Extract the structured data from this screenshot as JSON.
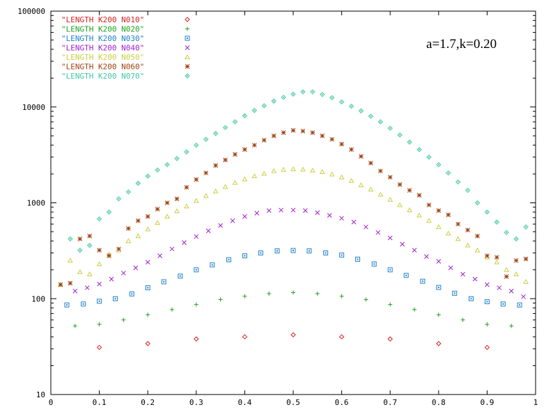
{
  "chart_data": {
    "type": "scatter",
    "title": "",
    "xlabel": "",
    "ylabel": "",
    "xlim": [
      0,
      1
    ],
    "ylim": [
      10,
      100000
    ],
    "yscale": "log",
    "grid": false,
    "legend_position": "top-left",
    "annotation": "a=1.7,k=0.20",
    "x_ticks": [
      "0",
      "0.1",
      "0.2",
      "0.3",
      "0.4",
      "0.5",
      "0.6",
      "0.7",
      "0.8",
      "0.9",
      "1"
    ],
    "y_ticks": [
      "10",
      "100",
      "1000",
      "10000",
      "100000"
    ],
    "series": [
      {
        "name": "\"LENGTH K200 N010\"",
        "color": "#d42020",
        "marker": "diamond",
        "x": [
          0.1,
          0.2,
          0.3,
          0.4,
          0.5,
          0.6,
          0.7,
          0.8,
          0.9
        ],
        "y": [
          31,
          34,
          38,
          40,
          42,
          40,
          38,
          34,
          31
        ]
      },
      {
        "name": "\"LENGTH K200 N020\"",
        "color": "#20a020",
        "marker": "plus",
        "x": [
          0.05,
          0.1,
          0.15,
          0.2,
          0.25,
          0.3,
          0.35,
          0.4,
          0.45,
          0.5,
          0.55,
          0.6,
          0.65,
          0.7,
          0.75,
          0.8,
          0.85,
          0.9,
          0.95
        ],
        "y": [
          52,
          54,
          60,
          68,
          77,
          87,
          98,
          106,
          113,
          116,
          113,
          106,
          98,
          87,
          77,
          68,
          60,
          54,
          52
        ]
      },
      {
        "name": "\"LENGTH K200 N030\"",
        "color": "#2080c8",
        "marker": "square",
        "x": [
          0.033,
          0.067,
          0.1,
          0.133,
          0.167,
          0.2,
          0.233,
          0.267,
          0.3,
          0.333,
          0.367,
          0.4,
          0.433,
          0.467,
          0.5,
          0.533,
          0.567,
          0.6,
          0.633,
          0.667,
          0.7,
          0.733,
          0.767,
          0.8,
          0.833,
          0.867,
          0.9,
          0.933,
          0.967
        ],
        "y": [
          86,
          88,
          94,
          100,
          112,
          130,
          150,
          172,
          200,
          225,
          255,
          280,
          300,
          315,
          318,
          315,
          300,
          285,
          258,
          230,
          200,
          175,
          152,
          131,
          114,
          100,
          93,
          88,
          86
        ]
      },
      {
        "name": "\"LENGTH K200 N040\"",
        "color": "#a020c8",
        "marker": "cross",
        "x": [
          0.05,
          0.075,
          0.1,
          0.125,
          0.15,
          0.175,
          0.2,
          0.225,
          0.25,
          0.275,
          0.3,
          0.325,
          0.35,
          0.375,
          0.4,
          0.425,
          0.45,
          0.475,
          0.5,
          0.525,
          0.55,
          0.575,
          0.6,
          0.625,
          0.65,
          0.675,
          0.7,
          0.725,
          0.75,
          0.775,
          0.8,
          0.825,
          0.85,
          0.875,
          0.9,
          0.925,
          0.95,
          0.975
        ],
        "y": [
          120,
          130,
          142,
          160,
          185,
          210,
          240,
          280,
          330,
          385,
          445,
          510,
          580,
          650,
          720,
          780,
          830,
          840,
          840,
          830,
          790,
          740,
          690,
          630,
          560,
          490,
          430,
          370,
          320,
          275,
          245,
          210,
          180,
          160,
          140,
          130,
          120,
          105
        ]
      },
      {
        "name": "\"LENGTH K200 N050\"",
        "color": "#c8d040",
        "marker": "triangle",
        "x": [
          0.02,
          0.04,
          0.06,
          0.08,
          0.1,
          0.12,
          0.14,
          0.16,
          0.18,
          0.2,
          0.22,
          0.24,
          0.26,
          0.28,
          0.3,
          0.32,
          0.34,
          0.36,
          0.38,
          0.4,
          0.42,
          0.44,
          0.46,
          0.48,
          0.5,
          0.52,
          0.54,
          0.56,
          0.58,
          0.6,
          0.62,
          0.64,
          0.66,
          0.68,
          0.7,
          0.72,
          0.74,
          0.76,
          0.78,
          0.8,
          0.82,
          0.84,
          0.86,
          0.88,
          0.9,
          0.92,
          0.94,
          0.96,
          0.98
        ],
        "y": [
          140,
          250,
          190,
          180,
          230,
          290,
          320,
          400,
          450,
          530,
          620,
          720,
          820,
          920,
          1050,
          1180,
          1320,
          1470,
          1620,
          1760,
          1900,
          2020,
          2150,
          2220,
          2250,
          2230,
          2180,
          2100,
          1980,
          1850,
          1700,
          1530,
          1380,
          1220,
          1080,
          950,
          840,
          740,
          650,
          560,
          480,
          420,
          360,
          320,
          270,
          240,
          200,
          180,
          150
        ]
      },
      {
        "name": "\"LENGTH K200 N060\"",
        "color": "#a04010",
        "marker": "star",
        "x": [
          0.02,
          0.04,
          0.06,
          0.08,
          0.1,
          0.12,
          0.14,
          0.16,
          0.18,
          0.2,
          0.22,
          0.24,
          0.26,
          0.28,
          0.3,
          0.32,
          0.34,
          0.36,
          0.38,
          0.4,
          0.42,
          0.44,
          0.46,
          0.48,
          0.5,
          0.52,
          0.54,
          0.56,
          0.58,
          0.6,
          0.62,
          0.64,
          0.66,
          0.68,
          0.7,
          0.72,
          0.74,
          0.76,
          0.78,
          0.8,
          0.82,
          0.84,
          0.86,
          0.88,
          0.9,
          0.92,
          0.94,
          0.96,
          0.98
        ],
        "y": [
          140,
          145,
          420,
          450,
          320,
          280,
          330,
          540,
          650,
          720,
          860,
          1000,
          1100,
          1450,
          1750,
          2050,
          2450,
          2800,
          3200,
          3600,
          4000,
          4500,
          5000,
          5400,
          5700,
          5600,
          5400,
          5000,
          4600,
          4100,
          3600,
          3050,
          2600,
          2150,
          1850,
          1550,
          1350,
          1200,
          950,
          830,
          750,
          600,
          520,
          450,
          280,
          270,
          170,
          250,
          260
        ]
      },
      {
        "name": "\"LENGTH K200 N070\"",
        "color": "#40c8a0",
        "marker": "diamond-dot",
        "x": [
          0.04,
          0.06,
          0.08,
          0.1,
          0.12,
          0.14,
          0.16,
          0.18,
          0.2,
          0.22,
          0.24,
          0.26,
          0.28,
          0.3,
          0.32,
          0.34,
          0.36,
          0.38,
          0.4,
          0.42,
          0.44,
          0.46,
          0.48,
          0.5,
          0.52,
          0.54,
          0.56,
          0.58,
          0.6,
          0.62,
          0.64,
          0.66,
          0.68,
          0.7,
          0.72,
          0.74,
          0.76,
          0.78,
          0.8,
          0.82,
          0.84,
          0.86,
          0.88,
          0.9,
          0.92,
          0.94,
          0.96,
          0.98
        ],
        "y": [
          420,
          320,
          360,
          680,
          800,
          1100,
          1300,
          1600,
          1900,
          2200,
          2500,
          2900,
          3400,
          4000,
          4600,
          5300,
          6100,
          7000,
          8100,
          9200,
          10300,
          11500,
          12600,
          13600,
          14400,
          14400,
          13500,
          12500,
          11300,
          10200,
          9100,
          8000,
          7000,
          6000,
          5100,
          4300,
          3600,
          3000,
          2500,
          2050,
          1650,
          1350,
          1000,
          800,
          630,
          490,
          420,
          560
        ]
      }
    ]
  }
}
